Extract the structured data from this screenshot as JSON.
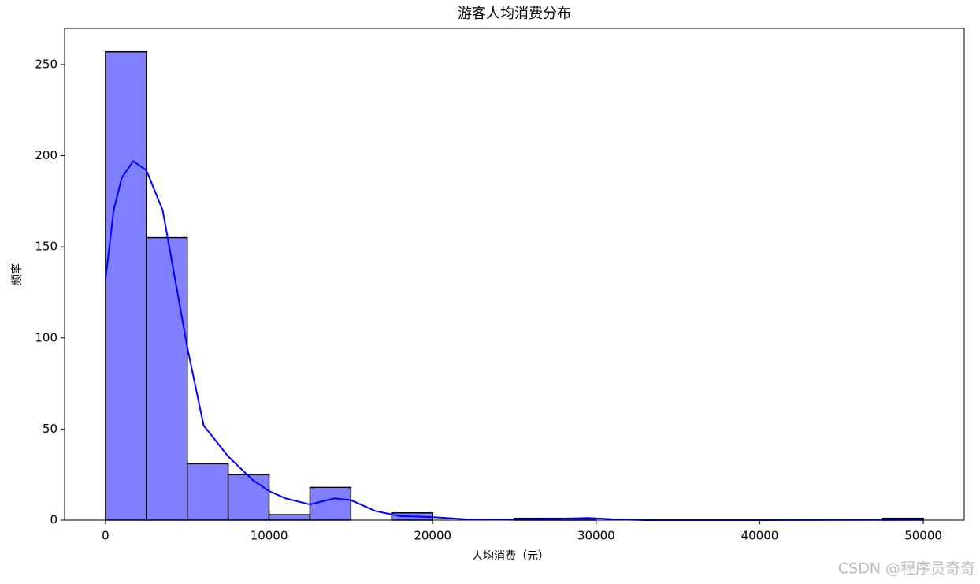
{
  "chart_data": {
    "type": "histogram",
    "title": "游客人均消费分布",
    "x_label": "人均消费（元）",
    "y_label": "频率",
    "bins": [
      0,
      2500,
      5000,
      7500,
      10000,
      12500,
      15000,
      17500,
      20000,
      22500,
      25000,
      27500,
      30000,
      32500,
      35000,
      37500,
      40000,
      42500,
      45000,
      47500,
      50000
    ],
    "values": [
      257,
      155,
      31,
      25,
      3,
      18,
      0,
      4,
      0,
      0,
      1,
      1,
      0,
      0,
      0,
      0,
      0,
      0,
      0,
      1
    ],
    "color": "#8080ff",
    "edge_color": "#000000",
    "kde": {
      "color": "#0000ff",
      "x": [
        0,
        500,
        1000,
        1700,
        2500,
        3500,
        5000,
        6000,
        7500,
        9000,
        10000,
        11000,
        12500,
        14000,
        15000,
        16500,
        18000,
        20000,
        22000,
        25000,
        28000,
        29500,
        31000,
        33000,
        40000,
        47000,
        50000
      ],
      "values": [
        132,
        170,
        188,
        197,
        192,
        170,
        95,
        52,
        35,
        22,
        16,
        12,
        8.6,
        12,
        11,
        5,
        2.2,
        1.7,
        0.5,
        0.2,
        0.8,
        1.2,
        0.5,
        0,
        0,
        0.1,
        0.2
      ]
    },
    "xlim": [
      -2500,
      52500
    ],
    "ylim": [
      0,
      269.85
    ],
    "xticks": [
      0,
      10000,
      20000,
      30000,
      40000,
      50000
    ],
    "yticks": [
      0,
      50,
      100,
      150,
      200,
      250
    ],
    "watermark": "CSDN @程序员奇奇"
  }
}
